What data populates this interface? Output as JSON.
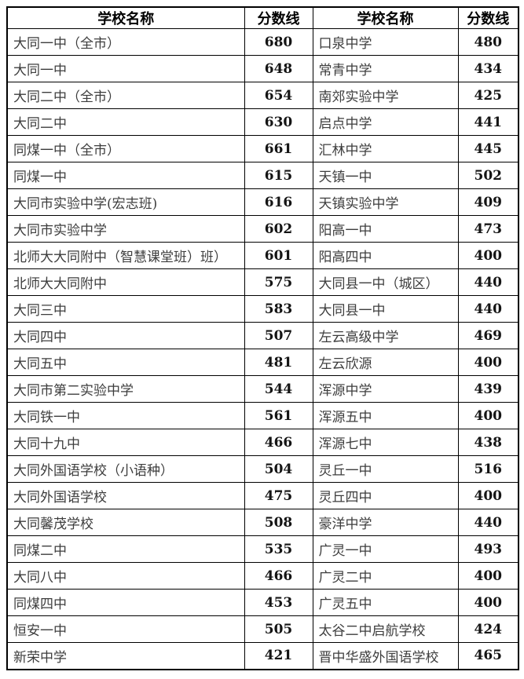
{
  "table": {
    "headers": [
      "学校名称",
      "分数线",
      "学校名称",
      "分数线"
    ],
    "rows": [
      [
        "大同一中（全市）",
        "680",
        "口泉中学",
        "480"
      ],
      [
        "大同一中",
        "648",
        "常青中学",
        "434"
      ],
      [
        "大同二中（全市）",
        "654",
        "南郊实验中学",
        "425"
      ],
      [
        "大同二中",
        "630",
        "启点中学",
        "441"
      ],
      [
        "同煤一中（全市）",
        "661",
        "汇林中学",
        "445"
      ],
      [
        "同煤一中",
        "615",
        "天镇一中",
        "502"
      ],
      [
        "大同市实验中学(宏志班)",
        "616",
        "天镇实验中学",
        "409"
      ],
      [
        "大同市实验中学",
        "602",
        "阳高一中",
        "473"
      ],
      [
        "北师大大同附中（智慧课堂班）班）",
        "601",
        "阳高四中",
        "400"
      ],
      [
        "北师大大同附中",
        "575",
        "大同县一中（城区）",
        "440"
      ],
      [
        "大同三中",
        "583",
        "大同县一中",
        "440"
      ],
      [
        "大同四中",
        "507",
        "左云高级中学",
        "469"
      ],
      [
        "大同五中",
        "481",
        "左云欣源",
        "400"
      ],
      [
        "大同市第二实验中学",
        "544",
        "浑源中学",
        "439"
      ],
      [
        "大同铁一中",
        "561",
        "浑源五中",
        "400"
      ],
      [
        "大同十九中",
        "466",
        "浑源七中",
        "438"
      ],
      [
        "大同外国语学校（小语种）",
        "504",
        "灵丘一中",
        "516"
      ],
      [
        "大同外国语学校",
        "475",
        "灵丘四中",
        "400"
      ],
      [
        "大同馨茂学校",
        "508",
        "豪洋中学",
        "440"
      ],
      [
        "同煤二中",
        "535",
        "广灵一中",
        "493"
      ],
      [
        "大同八中",
        "466",
        "广灵二中",
        "400"
      ],
      [
        "同煤四中",
        "453",
        "广灵五中",
        "400"
      ],
      [
        "恒安一中",
        "505",
        "太谷二中启航学校",
        "424"
      ],
      [
        "新荣中学",
        "421",
        "晋中华盛外国语学校",
        "465"
      ]
    ],
    "colors": {
      "border": "#000000",
      "header_text": "#000000",
      "school_text": "#3d3d3d",
      "score_text": "#141414",
      "background": "#ffffff"
    }
  }
}
